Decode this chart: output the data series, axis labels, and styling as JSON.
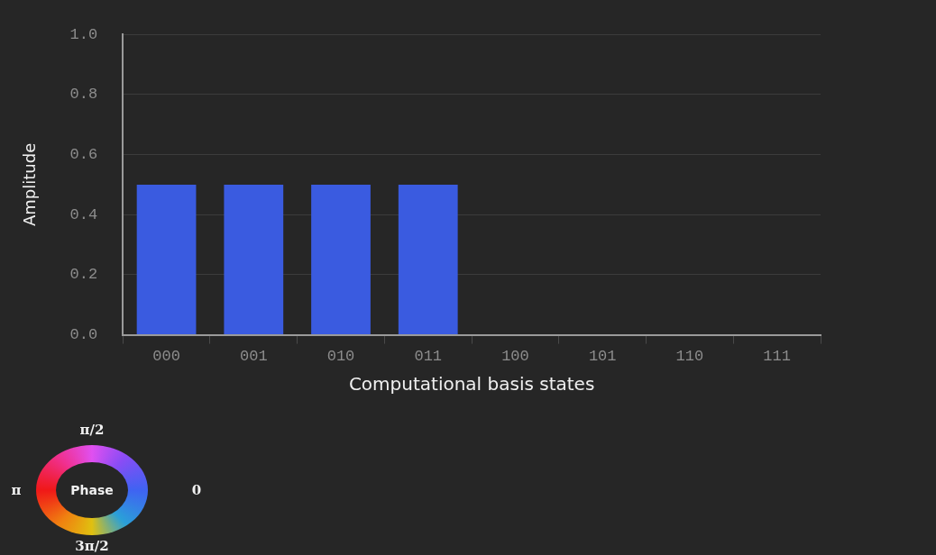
{
  "chart_data": {
    "type": "bar",
    "xlabel": "Computational basis states",
    "ylabel": "Amplitude",
    "categories": [
      "000",
      "001",
      "010",
      "011",
      "100",
      "101",
      "110",
      "111"
    ],
    "values": [
      0.5,
      0.5,
      0.5,
      0.5,
      0,
      0,
      0,
      0
    ],
    "color": "#3a5be0",
    "ylim": [
      0,
      1
    ],
    "yticks": [
      {
        "value": 0,
        "label": "0.0"
      },
      {
        "value": 0.2,
        "label": "0.2"
      },
      {
        "value": 0.4,
        "label": "0.4"
      },
      {
        "value": 0.6,
        "label": "0.6"
      },
      {
        "value": 0.8,
        "label": "0.8"
      },
      {
        "value": 1,
        "label": "1.0"
      }
    ],
    "grid": "y",
    "legend": false,
    "annotations": [
      "π/2",
      "0",
      "π",
      "3π/2",
      "Phase"
    ]
  }
}
